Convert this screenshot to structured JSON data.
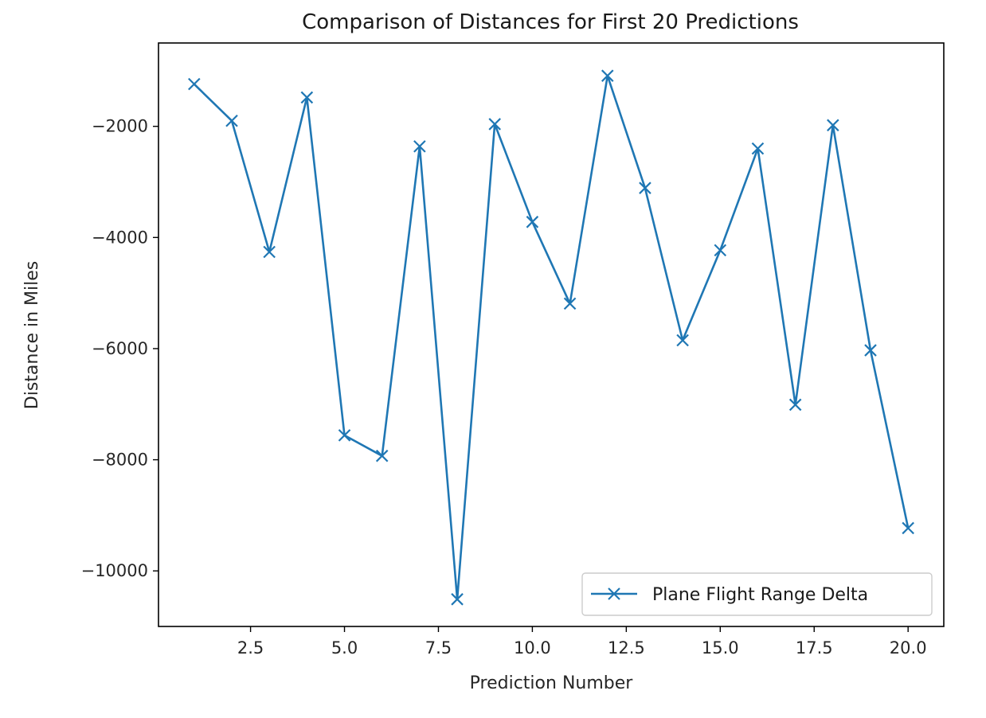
{
  "chart_data": {
    "type": "line",
    "title": "Comparison of Distances for First 20 Predictions",
    "xlabel": "Prediction Number",
    "ylabel": "Distance in Miles",
    "xlim": [
      0.05,
      20.95
    ],
    "ylim": [
      -11000,
      -500
    ],
    "xticks": [
      2.5,
      5.0,
      7.5,
      10.0,
      12.5,
      15.0,
      17.5,
      20.0
    ],
    "xtick_labels": [
      "2.5",
      "5.0",
      "7.5",
      "10.0",
      "12.5",
      "15.0",
      "17.5",
      "20.0"
    ],
    "yticks": [
      -2000,
      -4000,
      -6000,
      -8000,
      -10000
    ],
    "ytick_labels": [
      "−2000",
      "−4000",
      "−6000",
      "−8000",
      "−10000"
    ],
    "grid": false,
    "legend_position": "lower-right",
    "series": [
      {
        "name": "Plane Flight Range Delta",
        "color": "#1f77b4",
        "marker": "x",
        "x": [
          1,
          2,
          3,
          4,
          5,
          6,
          7,
          8,
          9,
          10,
          11,
          12,
          13,
          14,
          15,
          16,
          17,
          18,
          19,
          20
        ],
        "values": [
          -1240,
          -1900,
          -4260,
          -1480,
          -7560,
          -7930,
          -2360,
          -10510,
          -1960,
          -3720,
          -5190,
          -1090,
          -3110,
          -5850,
          -4230,
          -2400,
          -7010,
          -1980,
          -6030,
          -9230
        ]
      }
    ]
  }
}
